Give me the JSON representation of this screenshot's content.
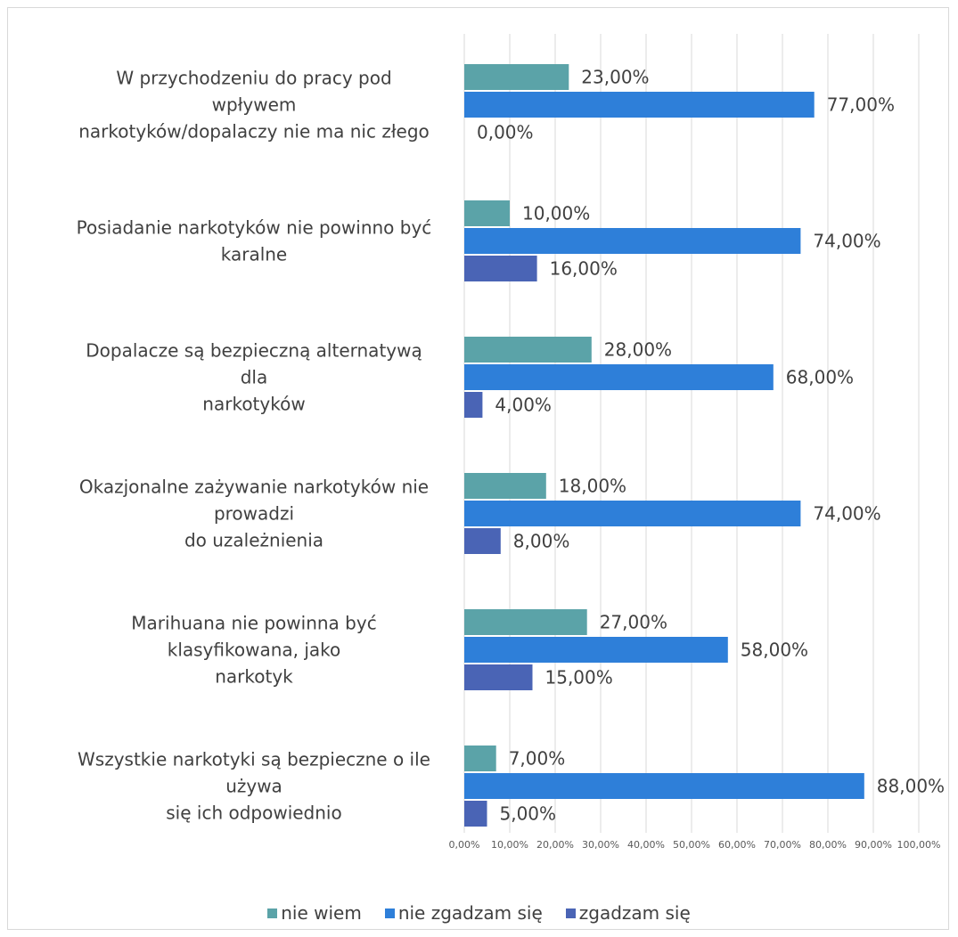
{
  "chart_data": {
    "type": "bar",
    "orientation": "horizontal",
    "categories": [
      [
        "W przychodzeniu do pracy pod",
        "wpływem",
        "narkotyków/dopalaczy nie ma nic złego"
      ],
      [
        "Posiadanie narkotyków nie powinno być",
        "karalne"
      ],
      [
        "Dopalacze są bezpieczną alternatywą",
        "dla",
        "narkotyków"
      ],
      [
        "Okazjonalne zażywanie narkotyków nie",
        "prowadzi",
        "do uzależnienia"
      ],
      [
        "Marihuana nie powinna być",
        "klasyfikowana, jako",
        "narkotyk"
      ],
      [
        "Wszystkie narkotyki są bezpieczne o ile",
        "używa",
        "się ich odpowiednio"
      ]
    ],
    "series": [
      {
        "name": "nie wiem",
        "color": "#5BA3A8",
        "values": [
          23,
          10,
          28,
          18,
          27,
          7
        ]
      },
      {
        "name": "nie zgadzam się",
        "color": "#2E7FD9",
        "values": [
          77,
          74,
          68,
          74,
          58,
          88
        ]
      },
      {
        "name": "zgadzam się",
        "color": "#4A64B5",
        "values": [
          0,
          16,
          4,
          8,
          15,
          5
        ]
      }
    ],
    "value_labels": [
      [
        "23,00%",
        "77,00%",
        "0,00%"
      ],
      [
        "10,00%",
        "74,00%",
        "16,00%"
      ],
      [
        "28,00%",
        "68,00%",
        "4,00%"
      ],
      [
        "18,00%",
        "74,00%",
        "8,00%"
      ],
      [
        "27,00%",
        "58,00%",
        "15,00%"
      ],
      [
        "7,00%",
        "88,00%",
        "5,00%"
      ]
    ],
    "x_ticks": [
      "0,00%",
      "10,00%",
      "20,00%",
      "30,00%",
      "40,00%",
      "50,00%",
      "60,00%",
      "70,00%",
      "80,00%",
      "90,00%",
      "100,00%"
    ],
    "xlim": [
      0,
      100
    ],
    "grid": true,
    "legend_position": "bottom"
  }
}
